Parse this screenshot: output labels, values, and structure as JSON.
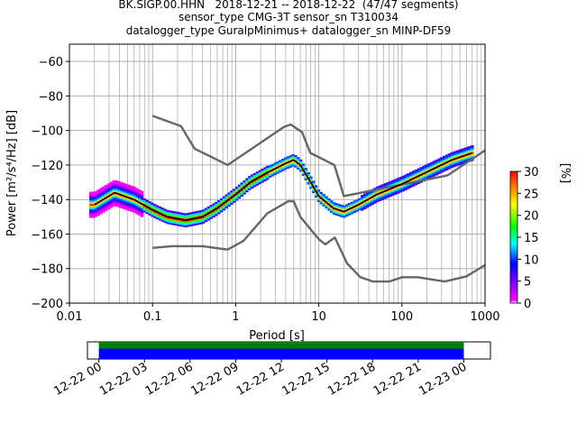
{
  "title_lines": [
    "BK.SIGP.00.HHN   2018-12-21 -- 2018-12-22  (47/47 segments)",
    "sensor_type CMG-3T sensor_sn T310034",
    "datalogger_type GuralpMinimus+ datalogger_sn MINP-DF59"
  ],
  "colors": {
    "nlnm_nhnm": "#666666",
    "mode_line": "#000000",
    "grid": "#b0b0b0",
    "timeline_green": "#008000",
    "timeline_blue": "#0000ff"
  },
  "chart_data": [
    {
      "type": "heatmap",
      "xlabel": "Period [s]",
      "ylabel": "Power [m²/s⁴/Hz] [dB]",
      "xscale": "log",
      "xlim": [
        0.01,
        1000
      ],
      "ylim": [
        -200,
        -50
      ],
      "xticks": [
        "0.01",
        "0.1",
        "1",
        "10",
        "100",
        "1000"
      ],
      "yticks": [
        "−200",
        "−180",
        "−160",
        "−140",
        "−120",
        "−100",
        "−80",
        "−60"
      ],
      "grid": true,
      "colorbar": {
        "label": "[%]",
        "range": [
          0,
          30
        ],
        "ticks": [
          "0",
          "5",
          "10",
          "15",
          "20",
          "25",
          "30"
        ]
      },
      "series": [
        {
          "x": [
            0.1,
            0.17,
            0.4,
            0.8,
            1.24,
            2.4,
            4.3,
            5.0,
            6.0,
            10.0,
            12.0,
            15.6,
            21.9,
            31.6,
            45.0,
            70.0,
            101.0,
            154.0,
            328.0,
            600.0,
            1000.0
          ],
          "y": [
            -168,
            -167,
            -167,
            -169,
            -164,
            -148,
            -141,
            -141,
            -150,
            -163,
            -166,
            -162,
            -177,
            -185,
            -187.5,
            -187.5,
            -185,
            -185,
            -187.5,
            -184.5,
            -178
          ]
        },
        {
          "x": [
            0.1,
            0.22,
            0.32,
            0.8,
            3.8,
            4.6,
            6.3,
            7.9,
            15.4,
            20.0,
            354.8,
            1000.0
          ],
          "y": [
            -91.5,
            -97.5,
            -110.5,
            -120,
            -98,
            -96.5,
            -101,
            -113,
            -120,
            -138,
            -126,
            -111.5
          ]
        },
        {
          "x": [
            0.02,
            0.035,
            0.06,
            0.1,
            0.15,
            0.25,
            0.4,
            0.6,
            1,
            1.5,
            2.5,
            4,
            5,
            6,
            8,
            10,
            15,
            20,
            30,
            50,
            100,
            200,
            400,
            700
          ],
          "y": [
            -143,
            -136,
            -140,
            -146,
            -150,
            -152,
            -150,
            -145,
            -137,
            -130,
            -124,
            -119,
            -117,
            -120,
            -130,
            -138,
            -145,
            -147,
            -143,
            -137,
            -131,
            -124,
            -117,
            -113
          ]
        }
      ]
    },
    {
      "type": "bar",
      "xticks": [
        "12-22 00",
        "12-22 03",
        "12-22 06",
        "12-22 09",
        "12-22 12",
        "12-22 15",
        "12-22 18",
        "12-22 21",
        "12-23 00"
      ],
      "xlim": [
        "2018-12-21 23:15",
        "2018-12-23 01:45"
      ],
      "data_start": "2018-12-22 00:00",
      "data_end": "2018-12-23 00:00"
    }
  ]
}
